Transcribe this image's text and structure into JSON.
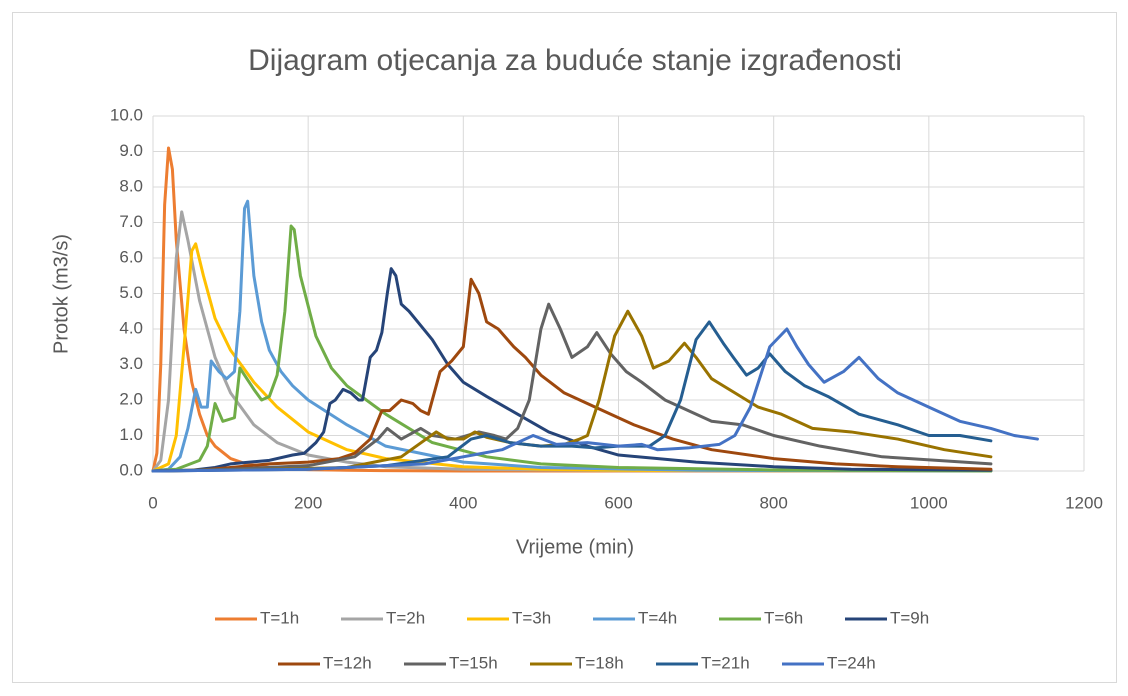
{
  "chart_data": {
    "type": "line",
    "title": "Dijagram otjecanja za buduće stanje izgrađenosti",
    "xlabel": "Vrijeme (min)",
    "ylabel": "Protok (m3/s)",
    "xlim": [
      0,
      1200
    ],
    "xticks": [
      0,
      200,
      400,
      600,
      800,
      1000,
      1200
    ],
    "ylim": [
      0,
      10
    ],
    "yticks": [
      {
        "value": 0,
        "label": "0.0"
      },
      {
        "value": 1,
        "label": "1.0"
      },
      {
        "value": 2,
        "label": "2.0"
      },
      {
        "value": 3,
        "label": "3.0"
      },
      {
        "value": 4,
        "label": "4.0"
      },
      {
        "value": 5,
        "label": "5.0"
      },
      {
        "value": 6,
        "label": "6.0"
      },
      {
        "value": 7,
        "label": "7.0"
      },
      {
        "value": 8,
        "label": "8.0"
      },
      {
        "value": 9,
        "label": "9.0"
      },
      {
        "value": 10,
        "label": "10.0"
      }
    ],
    "grid": true,
    "legend": "bottom",
    "series": [
      {
        "name": "T=1h",
        "color": "#ed7d31",
        "x": [
          0,
          5,
          10,
          15,
          20,
          25,
          30,
          40,
          50,
          60,
          70,
          80,
          100,
          120,
          150,
          200,
          250,
          300,
          400,
          600,
          1080
        ],
        "values": [
          0,
          0.5,
          3,
          7.5,
          9.1,
          8.5,
          6.5,
          4,
          2.5,
          1.6,
          1.0,
          0.7,
          0.35,
          0.2,
          0.1,
          0.04,
          0.02,
          0.01,
          0,
          0,
          0
        ]
      },
      {
        "name": "T=2h",
        "color": "#a5a5a5",
        "x": [
          0,
          10,
          20,
          30,
          37,
          45,
          60,
          80,
          100,
          130,
          160,
          200,
          250,
          300,
          400,
          600,
          1080
        ],
        "values": [
          0,
          0.3,
          2,
          6,
          7.3,
          6.5,
          4.8,
          3.2,
          2.2,
          1.3,
          0.8,
          0.45,
          0.25,
          0.12,
          0.05,
          0.01,
          0
        ]
      },
      {
        "name": "T=3h",
        "color": "#ffc000",
        "x": [
          0,
          20,
          30,
          40,
          50,
          55,
          65,
          80,
          100,
          130,
          160,
          200,
          250,
          300,
          400,
          500,
          600,
          1080
        ],
        "values": [
          0,
          0.2,
          1,
          3.5,
          6.2,
          6.4,
          5.5,
          4.3,
          3.4,
          2.5,
          1.8,
          1.1,
          0.6,
          0.35,
          0.12,
          0.05,
          0.02,
          0
        ]
      },
      {
        "name": "T=4h",
        "color": "#5b9bd5",
        "x": [
          0,
          20,
          35,
          45,
          55,
          62,
          70,
          75,
          85,
          95,
          105,
          112,
          118,
          122,
          130,
          140,
          150,
          165,
          180,
          200,
          250,
          300,
          400,
          500,
          700,
          1080
        ],
        "values": [
          0,
          0.05,
          0.4,
          1.2,
          2.3,
          1.8,
          1.8,
          3.1,
          2.8,
          2.6,
          2.8,
          4.5,
          7.4,
          7.6,
          5.5,
          4.2,
          3.4,
          2.8,
          2.4,
          2.0,
          1.3,
          0.7,
          0.25,
          0.1,
          0.02,
          0
        ]
      },
      {
        "name": "T=6h",
        "color": "#70ad47",
        "x": [
          0,
          30,
          60,
          70,
          80,
          90,
          105,
          112,
          130,
          140,
          150,
          160,
          170,
          178,
          182,
          190,
          210,
          230,
          250,
          300,
          360,
          430,
          500,
          600,
          800,
          1080
        ],
        "values": [
          0,
          0.05,
          0.3,
          0.7,
          1.9,
          1.4,
          1.5,
          2.9,
          2.3,
          2.0,
          2.1,
          2.7,
          4.5,
          6.9,
          6.8,
          5.5,
          3.8,
          2.9,
          2.4,
          1.6,
          0.8,
          0.4,
          0.2,
          0.1,
          0.03,
          0
        ]
      },
      {
        "name": "T=9h",
        "color": "#264478",
        "x": [
          0,
          50,
          80,
          100,
          150,
          180,
          195,
          210,
          220,
          228,
          235,
          245,
          255,
          265,
          270,
          280,
          288,
          295,
          302,
          307,
          313,
          320,
          330,
          345,
          360,
          380,
          400,
          430,
          470,
          510,
          560,
          600,
          700,
          800,
          900,
          1080
        ],
        "values": [
          0,
          0.02,
          0.1,
          0.2,
          0.3,
          0.45,
          0.5,
          0.8,
          1.1,
          1.9,
          2.0,
          2.3,
          2.2,
          2.0,
          2.0,
          3.2,
          3.4,
          3.9,
          5.0,
          5.7,
          5.5,
          4.7,
          4.5,
          4.1,
          3.7,
          3.0,
          2.5,
          2.1,
          1.6,
          1.1,
          0.7,
          0.45,
          0.25,
          0.12,
          0.05,
          0.02
        ]
      },
      {
        "name": "T=12h",
        "color": "#9e480e",
        "x": [
          0,
          60,
          100,
          150,
          200,
          240,
          260,
          280,
          295,
          305,
          320,
          335,
          345,
          355,
          370,
          385,
          400,
          410,
          420,
          430,
          445,
          465,
          480,
          500,
          530,
          570,
          620,
          670,
          720,
          800,
          880,
          960,
          1080
        ],
        "values": [
          0,
          0.02,
          0.1,
          0.2,
          0.25,
          0.35,
          0.5,
          0.9,
          1.7,
          1.7,
          2.0,
          1.9,
          1.7,
          1.6,
          2.8,
          3.1,
          3.5,
          5.4,
          5.0,
          4.2,
          4.0,
          3.5,
          3.2,
          2.7,
          2.2,
          1.8,
          1.3,
          0.9,
          0.6,
          0.35,
          0.2,
          0.12,
          0.05
        ]
      },
      {
        "name": "T=15h",
        "color": "#636363",
        "x": [
          0,
          100,
          200,
          260,
          290,
          302,
          320,
          345,
          360,
          390,
          420,
          440,
          455,
          470,
          485,
          500,
          510,
          525,
          540,
          560,
          572,
          590,
          610,
          630,
          660,
          690,
          720,
          760,
          800,
          860,
          940,
          1080
        ],
        "values": [
          0,
          0.05,
          0.15,
          0.4,
          0.9,
          1.2,
          0.9,
          1.2,
          1.0,
          0.9,
          1.1,
          1.0,
          0.9,
          1.2,
          2.0,
          4.0,
          4.7,
          4.0,
          3.2,
          3.5,
          3.9,
          3.3,
          2.8,
          2.5,
          2.0,
          1.7,
          1.4,
          1.3,
          1.0,
          0.7,
          0.4,
          0.2
        ]
      },
      {
        "name": "T=18h",
        "color": "#997300",
        "x": [
          0,
          150,
          250,
          320,
          365,
          380,
          400,
          415,
          430,
          460,
          500,
          530,
          550,
          560,
          575,
          595,
          612,
          630,
          645,
          665,
          685,
          700,
          720,
          750,
          780,
          810,
          850,
          900,
          960,
          1020,
          1080
        ],
        "values": [
          0,
          0.05,
          0.1,
          0.4,
          1.1,
          0.9,
          0.9,
          1.1,
          0.95,
          0.8,
          0.7,
          0.75,
          0.9,
          1.0,
          2.0,
          3.8,
          4.5,
          3.8,
          2.9,
          3.1,
          3.6,
          3.2,
          2.6,
          2.2,
          1.8,
          1.6,
          1.2,
          1.1,
          0.9,
          0.6,
          0.4
        ]
      },
      {
        "name": "T=21h",
        "color": "#255e91",
        "x": [
          0,
          200,
          300,
          380,
          410,
          430,
          460,
          500,
          540,
          570,
          600,
          640,
          660,
          680,
          700,
          717,
          735,
          748,
          765,
          780,
          795,
          815,
          840,
          870,
          910,
          960,
          1000,
          1040,
          1080
        ],
        "values": [
          0,
          0.05,
          0.15,
          0.4,
          0.9,
          1.0,
          0.8,
          0.7,
          0.7,
          0.65,
          0.7,
          0.7,
          1.0,
          2.0,
          3.7,
          4.2,
          3.6,
          3.2,
          2.7,
          2.9,
          3.3,
          2.8,
          2.4,
          2.1,
          1.6,
          1.3,
          1.0,
          1.0,
          0.85
        ]
      },
      {
        "name": "T=24h",
        "color": "#4472c4",
        "x": [
          0,
          200,
          350,
          450,
          490,
          520,
          560,
          600,
          630,
          650,
          690,
          730,
          750,
          770,
          795,
          817,
          830,
          845,
          865,
          890,
          910,
          935,
          960,
          1000,
          1040,
          1080,
          1110,
          1140
        ],
        "values": [
          0,
          0.05,
          0.2,
          0.6,
          1.0,
          0.75,
          0.8,
          0.7,
          0.75,
          0.6,
          0.65,
          0.75,
          1.0,
          1.8,
          3.5,
          4.0,
          3.5,
          3.0,
          2.5,
          2.8,
          3.2,
          2.6,
          2.2,
          1.8,
          1.4,
          1.2,
          1.0,
          0.9
        ]
      }
    ]
  }
}
